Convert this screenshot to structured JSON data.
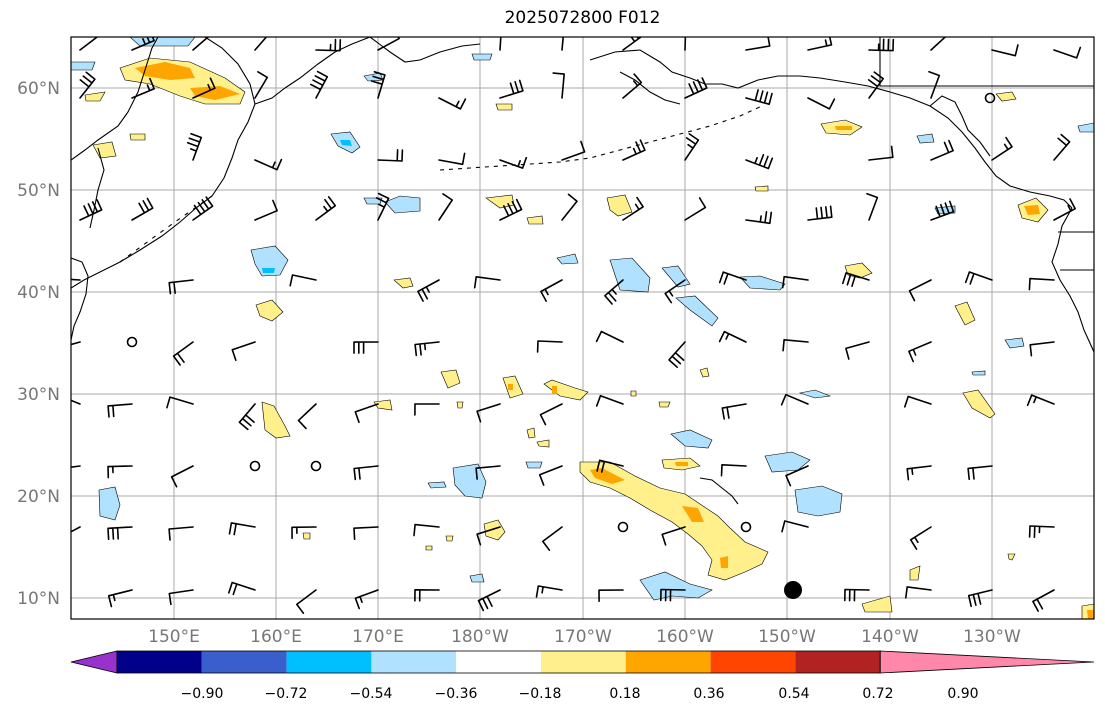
{
  "title": "2025072800 F012",
  "lat_labels": [
    "60°N",
    "50°N",
    "40°N",
    "30°N",
    "20°N",
    "10°N"
  ],
  "lon_labels": [
    "150°E",
    "160°E",
    "170°E",
    "180°W",
    "170°W",
    "160°W",
    "150°W",
    "140°W",
    "130°W"
  ],
  "colorbar": {
    "colors": [
      "#9932cc",
      "#00008b",
      "#3a5fcd",
      "#00bfff",
      "#b0e2ff",
      "#ffffff",
      "#fff08c",
      "#ffa500",
      "#ff4500",
      "#b22222",
      "#ff88aa"
    ],
    "tick_labels": [
      "−0.90",
      "−0.72",
      "−0.54",
      "−0.36",
      "−0.18",
      "0.18",
      "0.36",
      "0.54",
      "0.72",
      "0.90"
    ]
  },
  "colors": {
    "land_outline": "#000000",
    "grid": "#aaaaaa",
    "barb": "#000000"
  }
}
